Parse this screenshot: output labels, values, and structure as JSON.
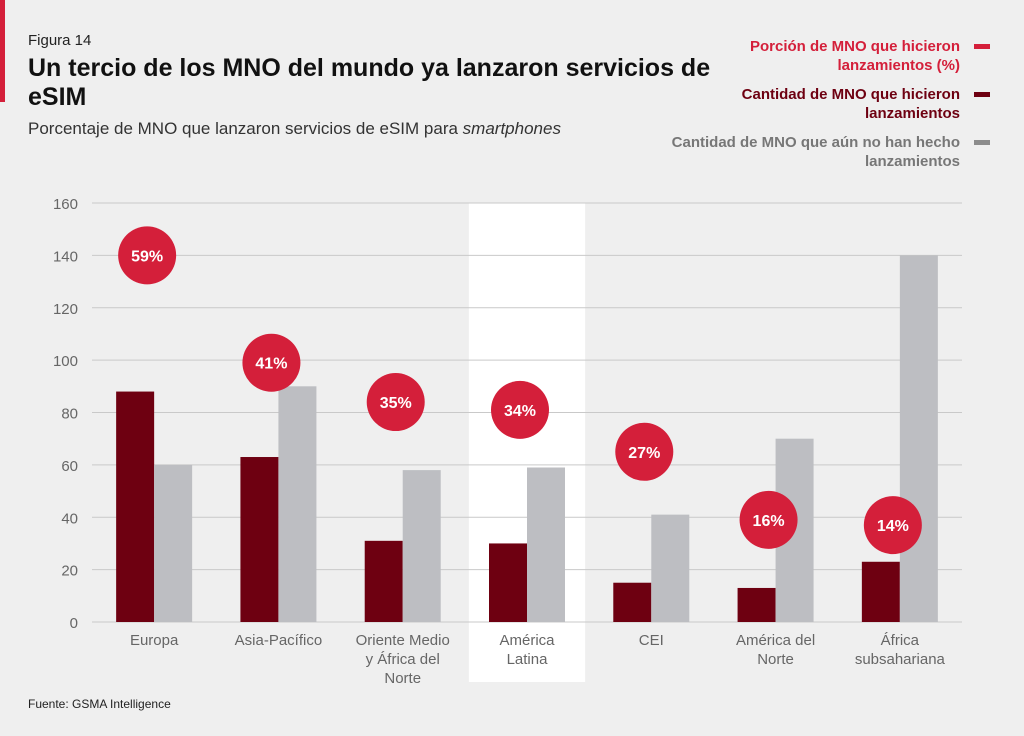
{
  "figure_label": "Figura 14",
  "title": "Un tercio de los MNO del mundo ya lanzaron servicios de eSIM",
  "subtitle_main": "Porcentaje de MNO que lanzaron servicios de eSIM para ",
  "subtitle_italic": "smartphones",
  "source": "Fuente: GSMA Intelligence",
  "colors": {
    "accent": "#d41f3a",
    "launched": "#6e0011",
    "not_launched": "#bdbec2",
    "highlight_band": "#ffffff"
  },
  "legend": [
    {
      "label": "Porción de MNO que hicieron lanzamientos (%)",
      "color": "#d41f3a"
    },
    {
      "label": "Cantidad de MNO que hicieron lanzamientos",
      "color": "#6e0011"
    },
    {
      "label": "Cantidad de MNO que aún no han hecho lanzamientos",
      "color": "#8c8c8c"
    }
  ],
  "chart_data": {
    "type": "bar",
    "categories": [
      [
        "Europa"
      ],
      [
        "Asia-Pacífico"
      ],
      [
        "Oriente Medio",
        "y África del",
        "Norte"
      ],
      [
        "América",
        "Latina"
      ],
      [
        "CEI"
      ],
      [
        "América del",
        "Norte"
      ],
      [
        "África",
        "subsahariana"
      ]
    ],
    "series": [
      {
        "name": "Cantidad de MNO que hicieron lanzamientos",
        "values": [
          88,
          63,
          31,
          30,
          15,
          13,
          23
        ]
      },
      {
        "name": "Cantidad de MNO que aún no han hecho lanzamientos",
        "values": [
          60,
          90,
          58,
          59,
          41,
          70,
          140
        ]
      }
    ],
    "percent_launched": [
      "59%",
      "41%",
      "35%",
      "34%",
      "27%",
      "16%",
      "14%"
    ],
    "percent_bubble_level": [
      140,
      99,
      84,
      81,
      65,
      39,
      37
    ],
    "ylim": [
      0,
      160
    ],
    "yticks": [
      0,
      20,
      40,
      60,
      80,
      100,
      120,
      140,
      160
    ],
    "grid": true,
    "highlighted_category": 3,
    "legend_position": "top-right"
  }
}
